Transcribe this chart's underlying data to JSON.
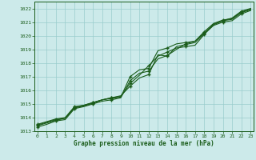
{
  "background_color": "#cceaea",
  "grid_color": "#99cccc",
  "line_color": "#1a5c1a",
  "marker_color": "#1a5c1a",
  "xlabel": "Graphe pression niveau de la mer (hPa)",
  "xlabel_color": "#1a5c1a",
  "tick_color": "#1a5c1a",
  "ylim": [
    1013.0,
    1022.5
  ],
  "xlim": [
    -0.3,
    23.3
  ],
  "yticks": [
    1013,
    1014,
    1015,
    1016,
    1017,
    1018,
    1019,
    1020,
    1021,
    1022
  ],
  "xticks": [
    0,
    1,
    2,
    3,
    4,
    5,
    6,
    7,
    8,
    9,
    10,
    11,
    12,
    13,
    14,
    15,
    16,
    17,
    18,
    19,
    20,
    21,
    22,
    23
  ],
  "lines": [
    [
      1013.5,
      1013.7,
      1013.9,
      1014.0,
      1014.8,
      1014.9,
      1015.1,
      1015.3,
      1015.45,
      1015.55,
      1016.5,
      1017.1,
      1017.8,
      1018.5,
      1018.8,
      1019.1,
      1019.2,
      1019.3,
      1020.1,
      1020.8,
      1021.1,
      1021.3,
      1021.8,
      1022.0
    ],
    [
      1013.4,
      1013.6,
      1013.8,
      1013.95,
      1014.7,
      1014.85,
      1015.05,
      1015.3,
      1015.4,
      1015.5,
      1017.0,
      1017.5,
      1017.6,
      1018.9,
      1019.1,
      1019.4,
      1019.5,
      1019.6,
      1020.2,
      1020.85,
      1021.1,
      1021.2,
      1021.7,
      1021.9
    ],
    [
      1013.3,
      1013.5,
      1013.75,
      1013.85,
      1014.65,
      1014.8,
      1015.0,
      1015.2,
      1015.3,
      1015.45,
      1016.7,
      1017.25,
      1017.4,
      1018.3,
      1018.55,
      1019.0,
      1019.4,
      1019.6,
      1020.3,
      1020.9,
      1021.15,
      1021.25,
      1021.75,
      1021.95
    ],
    [
      1013.45,
      1013.65,
      1013.85,
      1013.95,
      1014.75,
      1014.9,
      1015.1,
      1015.3,
      1015.45,
      1015.6,
      1016.3,
      1016.9,
      1017.15,
      1018.6,
      1018.5,
      1019.2,
      1019.35,
      1019.5,
      1020.15,
      1020.75,
      1021.0,
      1021.1,
      1021.6,
      1021.85
    ]
  ],
  "marker_indices": [
    0,
    2,
    4,
    6,
    8,
    10,
    12,
    14,
    16,
    18,
    20,
    22
  ]
}
